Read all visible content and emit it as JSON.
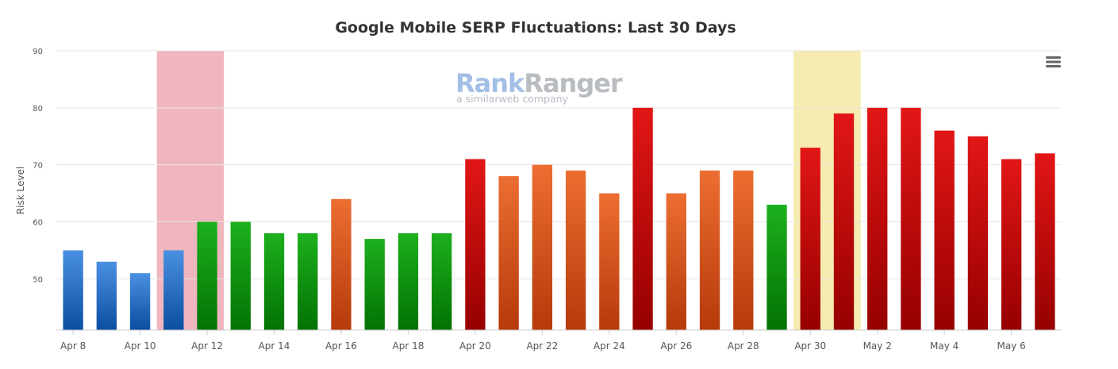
{
  "chart_data": {
    "type": "bar",
    "title": "Google Mobile SERP Fluctuations: Last 30 Days",
    "xlabel": "",
    "ylabel": "Risk Level",
    "ylim": [
      41,
      90
    ],
    "yticks": [
      50,
      60,
      70,
      80,
      90
    ],
    "grid": true,
    "categories": [
      "Apr 8",
      "Apr 9",
      "Apr 10",
      "Apr 11",
      "Apr 12",
      "Apr 13",
      "Apr 14",
      "Apr 15",
      "Apr 16",
      "Apr 17",
      "Apr 18",
      "Apr 19",
      "Apr 20",
      "Apr 21",
      "Apr 22",
      "Apr 23",
      "Apr 24",
      "Apr 25",
      "Apr 26",
      "Apr 27",
      "Apr 28",
      "Apr 29",
      "Apr 30",
      "May 1",
      "May 2",
      "May 3",
      "May 4",
      "May 5",
      "May 6",
      "May 7"
    ],
    "x_tick_labels": [
      "Apr 8",
      "Apr 10",
      "Apr 12",
      "Apr 14",
      "Apr 16",
      "Apr 18",
      "Apr 20",
      "Apr 22",
      "Apr 24",
      "Apr 26",
      "Apr 28",
      "Apr 30",
      "May 2",
      "May 4",
      "May 6"
    ],
    "values": [
      55,
      53,
      51,
      55,
      60,
      60,
      58,
      58,
      64,
      57,
      58,
      58,
      71,
      68,
      70,
      69,
      65,
      80,
      65,
      69,
      69,
      63,
      73,
      79,
      80,
      80,
      76,
      75,
      71,
      72
    ],
    "bar_levels": [
      "blue",
      "blue",
      "blue",
      "blue",
      "green",
      "green",
      "green",
      "green",
      "orange",
      "green",
      "green",
      "green",
      "red",
      "orange",
      "orange",
      "orange",
      "orange",
      "red",
      "orange",
      "orange",
      "orange",
      "green",
      "red",
      "red",
      "red",
      "red",
      "red",
      "red",
      "red",
      "red"
    ],
    "level_colors": {
      "blue": {
        "top": "#4a90e2",
        "bottom": "#0b4ea2"
      },
      "green": {
        "top": "#1db01d",
        "bottom": "#037203"
      },
      "orange": {
        "top": "#ec6e32",
        "bottom": "#b63a0a"
      },
      "red": {
        "top": "#e21616",
        "bottom": "#960000"
      }
    },
    "highlight_bands": [
      {
        "from": "Apr 11",
        "to": "Apr 12",
        "color": "#efb6bf"
      },
      {
        "from": "Apr 30",
        "to": "May 1",
        "color": "#f6ebb0"
      }
    ],
    "watermark": {
      "main_left": "Rank",
      "main_right": "Ranger",
      "sub": "a similarweb company",
      "color_left": "#a3bfe6",
      "color_right": "#b9bcc1"
    },
    "menu_icon": "hamburger-menu-icon"
  }
}
